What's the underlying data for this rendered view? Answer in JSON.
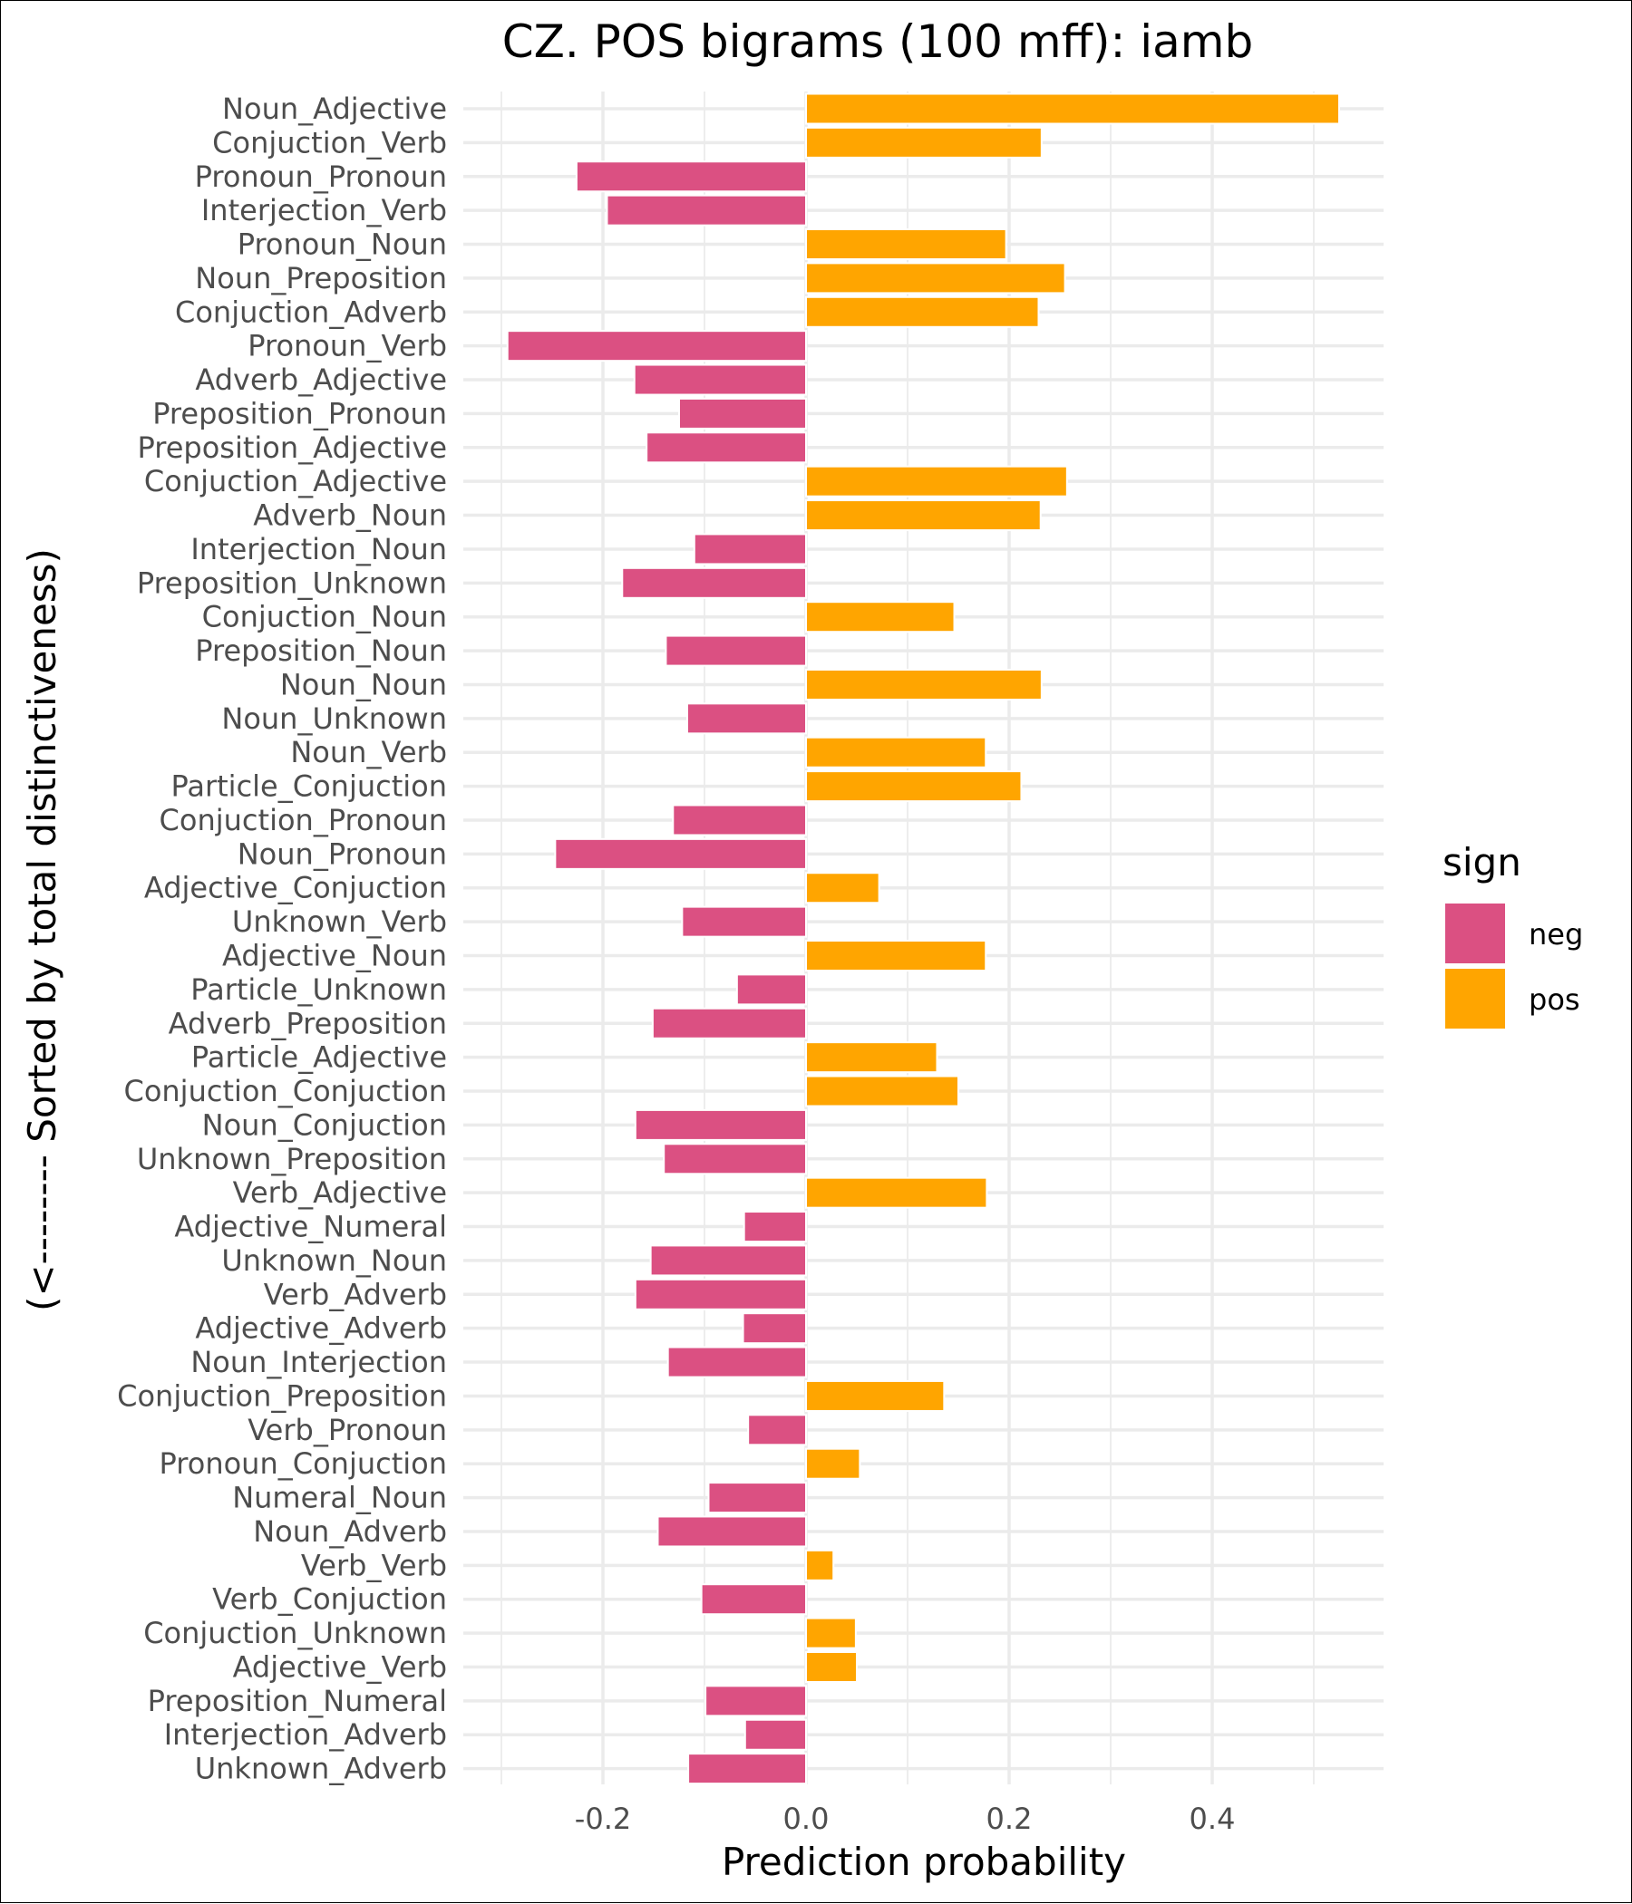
{
  "chart_data": {
    "type": "bar",
    "orientation": "horizontal",
    "title": "CZ. POS bigrams (100 mff): iamb",
    "xlabel": "Prediction probability",
    "ylabel": "(<-------- Sorted by total distinctiveness)",
    "xlim": [
      -0.33,
      0.565
    ],
    "x_ticks": [
      -0.2,
      0.0,
      0.2,
      0.4
    ],
    "x_tick_labels": [
      "-0.2",
      "0.0",
      "0.2",
      "0.4"
    ],
    "legend": {
      "title": "sign",
      "placement": "right",
      "entries": [
        {
          "label": "neg",
          "color": "#DB5082"
        },
        {
          "label": "pos",
          "color": "#FFA500"
        }
      ]
    },
    "colors": {
      "neg": "#DB5082",
      "pos": "#FFA500"
    },
    "categories": [
      "Noun_Adjective",
      "Conjuction_Verb",
      "Pronoun_Pronoun",
      "Interjection_Verb",
      "Pronoun_Noun",
      "Noun_Preposition",
      "Conjuction_Adverb",
      "Pronoun_Verb",
      "Adverb_Adjective",
      "Preposition_Pronoun",
      "Preposition_Adjective",
      "Conjuction_Adjective",
      "Adverb_Noun",
      "Interjection_Noun",
      "Preposition_Unknown",
      "Conjuction_Noun",
      "Preposition_Noun",
      "Noun_Noun",
      "Noun_Unknown",
      "Noun_Verb",
      "Particle_Conjuction",
      "Conjuction_Pronoun",
      "Noun_Pronoun",
      "Adjective_Conjuction",
      "Unknown_Verb",
      "Adjective_Noun",
      "Particle_Unknown",
      "Adverb_Preposition",
      "Particle_Adjective",
      "Conjuction_Conjuction",
      "Noun_Conjuction",
      "Unknown_Preposition",
      "Verb_Adjective",
      "Adjective_Numeral",
      "Unknown_Noun",
      "Verb_Adverb",
      "Adjective_Adverb",
      "Noun_Interjection",
      "Conjuction_Preposition",
      "Verb_Pronoun",
      "Pronoun_Conjuction",
      "Numeral_Noun",
      "Noun_Adverb",
      "Verb_Verb",
      "Verb_Conjuction",
      "Conjuction_Unknown",
      "Adjective_Verb",
      "Preposition_Numeral",
      "Interjection_Adverb",
      "Unknown_Adverb"
    ],
    "values": [
      0.525,
      0.232,
      -0.226,
      -0.196,
      0.197,
      0.255,
      0.229,
      -0.294,
      -0.169,
      -0.125,
      -0.157,
      0.257,
      0.231,
      -0.11,
      -0.181,
      0.146,
      -0.138,
      0.232,
      -0.117,
      0.177,
      0.212,
      -0.131,
      -0.247,
      0.072,
      -0.122,
      0.177,
      -0.068,
      -0.151,
      0.129,
      0.15,
      -0.168,
      -0.14,
      0.178,
      -0.061,
      -0.153,
      -0.168,
      -0.062,
      -0.136,
      0.136,
      -0.057,
      0.053,
      -0.096,
      -0.146,
      0.027,
      -0.103,
      0.049,
      0.05,
      -0.099,
      -0.06,
      -0.116
    ]
  }
}
